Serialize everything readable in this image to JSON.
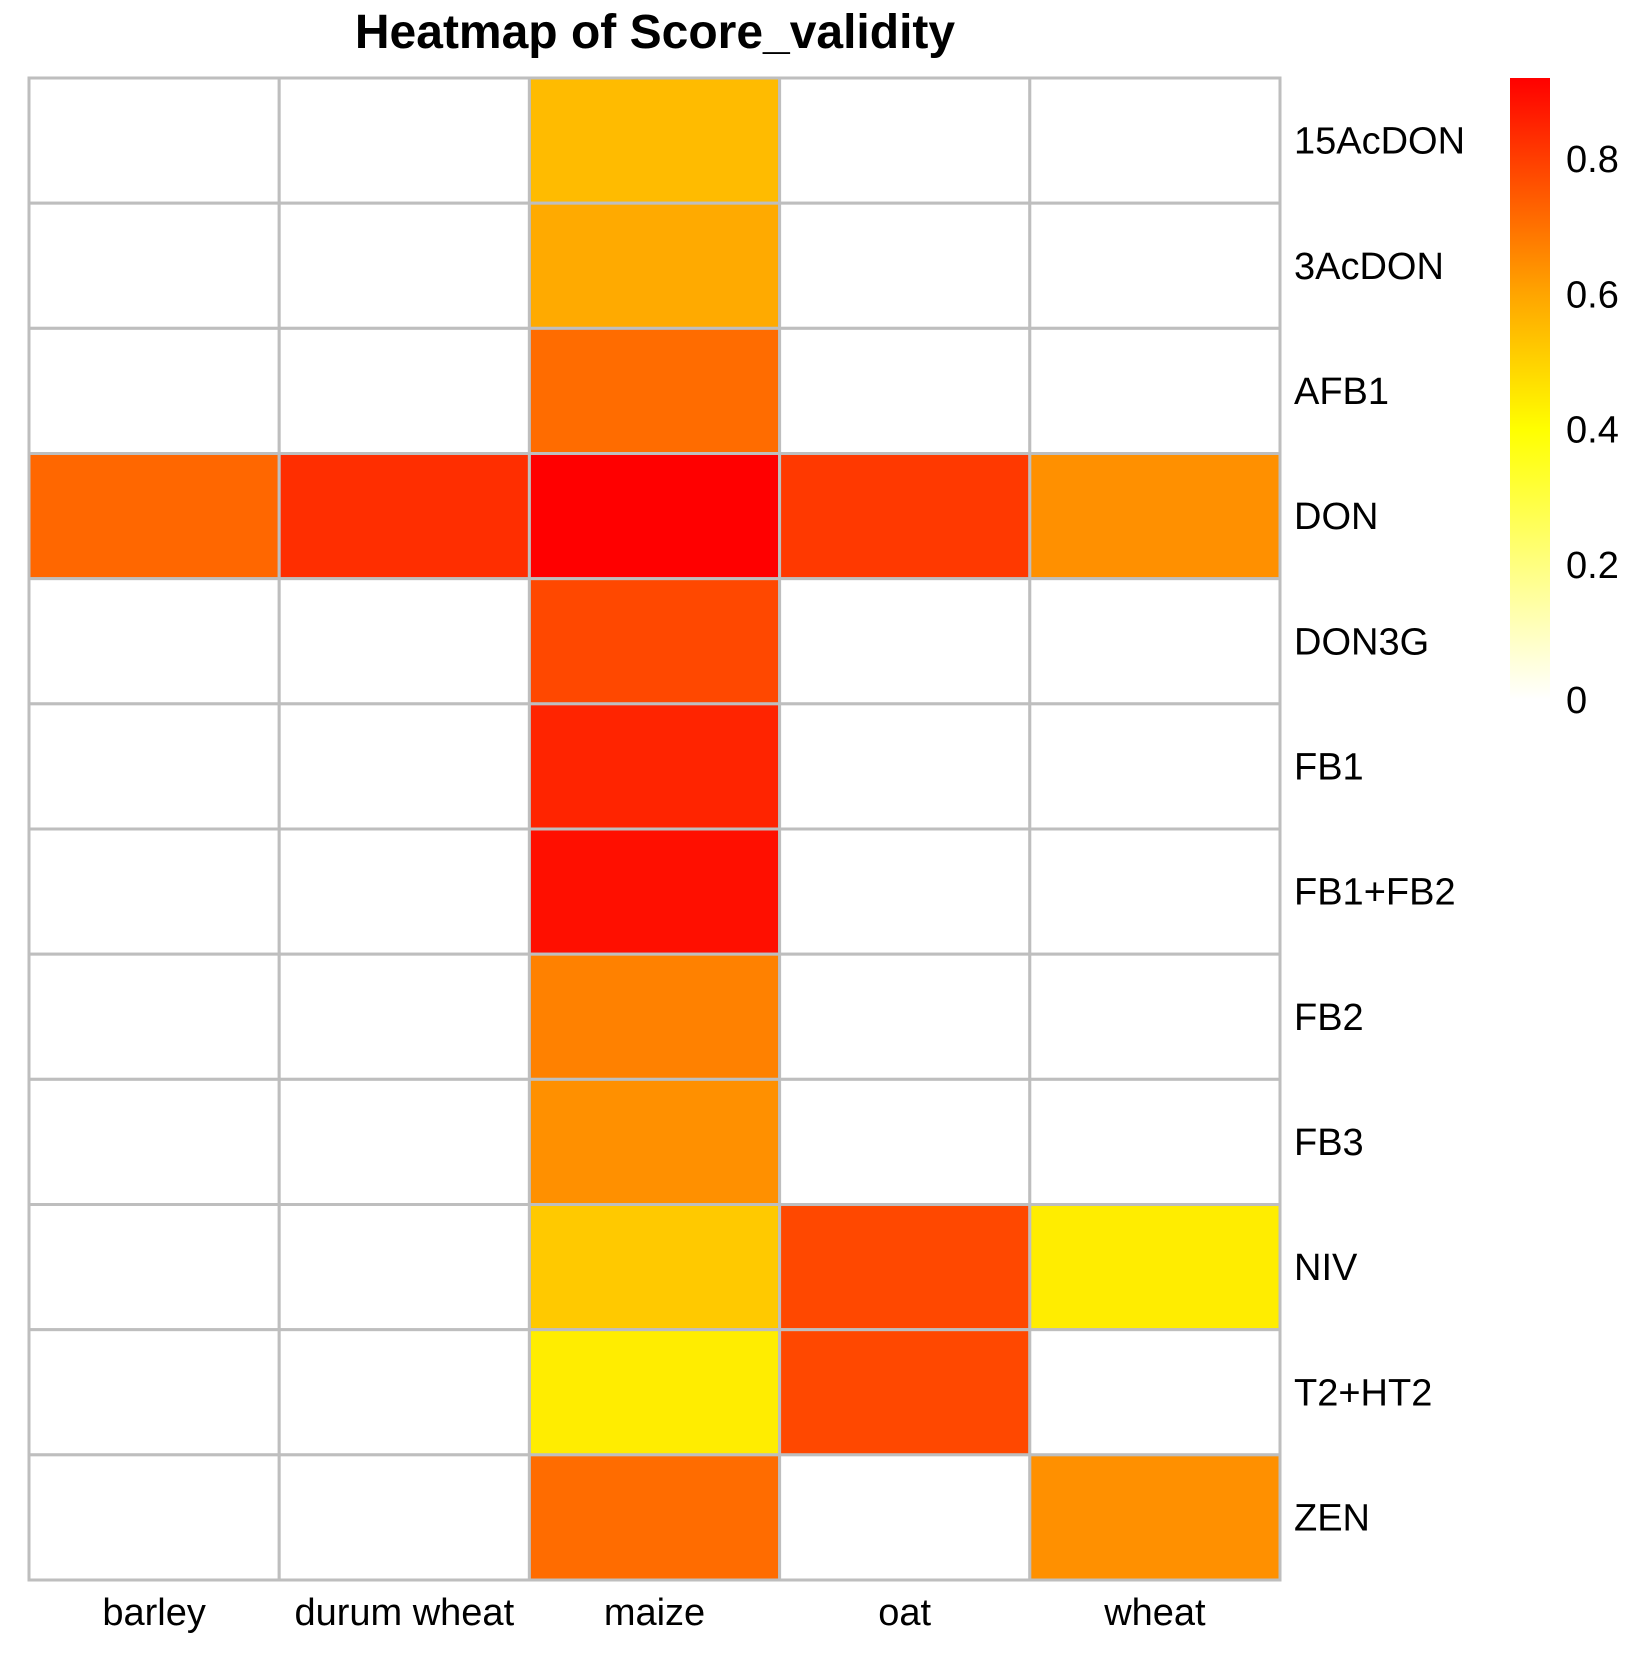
{
  "chart_data": {
    "type": "heatmap",
    "title": "Heatmap  of  Score_validity",
    "columns": [
      "barley",
      "durum wheat",
      "maize",
      "oat",
      "wheat"
    ],
    "rows": [
      "15AcDON",
      "3AcDON",
      "AFB1",
      "DON",
      "DON3G",
      "FB1",
      "FB1+FB2",
      "FB2",
      "FB3",
      "NIV",
      "T2+HT2",
      "ZEN"
    ],
    "values": [
      [
        null,
        null,
        0.55,
        null,
        null
      ],
      [
        null,
        null,
        0.59,
        null,
        null
      ],
      [
        null,
        null,
        0.71,
        null,
        null
      ],
      [
        0.72,
        0.83,
        0.92,
        0.81,
        0.64
      ],
      [
        null,
        null,
        0.78,
        null,
        null
      ],
      [
        null,
        null,
        0.85,
        null,
        null
      ],
      [
        null,
        null,
        0.89,
        null,
        null
      ],
      [
        null,
        null,
        0.67,
        null,
        null
      ],
      [
        null,
        null,
        0.64,
        null,
        null
      ],
      [
        null,
        null,
        0.52,
        0.78,
        0.44
      ],
      [
        null,
        null,
        0.44,
        0.78,
        null
      ],
      [
        null,
        null,
        0.71,
        null,
        0.64
      ]
    ],
    "missing_color": "#ffffff",
    "grid_color": "#bebebe",
    "color_scale": {
      "min": 0,
      "max": 0.92,
      "stops": [
        {
          "value": 0.0,
          "color": "#ffffff"
        },
        {
          "value": 0.4,
          "color": "#ffff00"
        },
        {
          "value": 0.6,
          "color": "#ffa500"
        },
        {
          "value": 0.92,
          "color": "#ff0000"
        }
      ]
    },
    "legend": {
      "position": "right",
      "ticks": [
        0,
        0.2,
        0.4,
        0.6,
        0.8
      ],
      "tick_labels": [
        "0",
        "0.2",
        "0.4",
        "0.6",
        "0.8"
      ]
    }
  }
}
